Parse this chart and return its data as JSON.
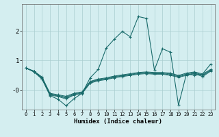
{
  "xlabel": "Humidex (Indice chaleur)",
  "bg_color": "#d4eef0",
  "grid_color": "#aacdd0",
  "line_color": "#1a6b6b",
  "xlim": [
    -0.5,
    23.5
  ],
  "ylim": [
    -0.65,
    2.9
  ],
  "yticks": [
    0.0,
    1.0,
    2.0
  ],
  "ytick_labels": [
    "-0",
    "1",
    "2"
  ],
  "xticks": [
    0,
    1,
    2,
    3,
    4,
    5,
    6,
    7,
    8,
    9,
    10,
    11,
    12,
    13,
    14,
    15,
    16,
    17,
    18,
    19,
    20,
    21,
    22,
    23
  ],
  "series_flat": [
    [
      0.75,
      0.65,
      0.45,
      -0.1,
      -0.15,
      -0.2,
      -0.1,
      -0.05,
      0.3,
      0.38,
      0.42,
      0.48,
      0.52,
      0.56,
      0.6,
      0.62,
      0.6,
      0.6,
      0.58,
      0.5,
      0.58,
      0.62,
      0.55,
      0.7
    ],
    [
      0.75,
      0.64,
      0.43,
      -0.12,
      -0.17,
      -0.23,
      -0.12,
      -0.07,
      0.28,
      0.36,
      0.4,
      0.46,
      0.5,
      0.54,
      0.58,
      0.6,
      0.58,
      0.58,
      0.55,
      0.48,
      0.55,
      0.6,
      0.52,
      0.68
    ],
    [
      0.75,
      0.63,
      0.41,
      -0.14,
      -0.19,
      -0.26,
      -0.14,
      -0.09,
      0.26,
      0.34,
      0.38,
      0.44,
      0.48,
      0.52,
      0.56,
      0.58,
      0.56,
      0.56,
      0.52,
      0.46,
      0.52,
      0.58,
      0.49,
      0.66
    ],
    [
      0.75,
      0.62,
      0.39,
      -0.16,
      -0.21,
      -0.29,
      -0.16,
      -0.11,
      0.24,
      0.32,
      0.36,
      0.42,
      0.46,
      0.5,
      0.54,
      0.56,
      0.54,
      0.54,
      0.5,
      0.44,
      0.5,
      0.56,
      0.46,
      0.64
    ]
  ],
  "main_series": [
    0.75,
    0.62,
    0.38,
    -0.18,
    -0.3,
    -0.52,
    -0.28,
    -0.1,
    0.42,
    0.7,
    1.42,
    1.72,
    1.98,
    1.8,
    2.48,
    2.42,
    0.68,
    1.4,
    1.28,
    -0.5,
    0.56,
    0.5,
    0.55,
    0.88
  ]
}
